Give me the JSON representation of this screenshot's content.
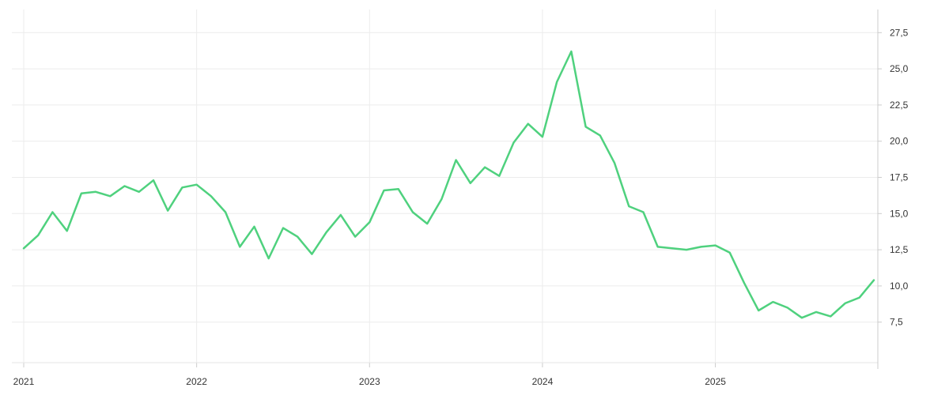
{
  "chart_data": {
    "type": "line",
    "title": "",
    "xlabel": "",
    "ylabel": "",
    "x_tick_labels": [
      "2021",
      "2022",
      "2023",
      "2024",
      "2025"
    ],
    "y_tick_labels": [
      "7,5",
      "10,0",
      "12,5",
      "15,0",
      "17,5",
      "20,0",
      "22,5",
      "25,0",
      "27,5"
    ],
    "y_ticks": [
      7.5,
      10.0,
      12.5,
      15.0,
      17.5,
      20.0,
      22.5,
      25.0,
      27.5
    ],
    "ylim": [
      4.7,
      29.1
    ],
    "xlim": [
      "2021-01",
      "2025-12"
    ],
    "grid": true,
    "y_axis_position": "right",
    "line_color": "#4fd17e",
    "grid_color": "#ececec",
    "series": [
      {
        "x": [
          "2021-01",
          "2021-02",
          "2021-03",
          "2021-04",
          "2021-05",
          "2021-06",
          "2021-07",
          "2021-08",
          "2021-09",
          "2021-10",
          "2021-11",
          "2021-12",
          "2022-01",
          "2022-02",
          "2022-03",
          "2022-04",
          "2022-05",
          "2022-06",
          "2022-07",
          "2022-08",
          "2022-09",
          "2022-10",
          "2022-11",
          "2022-12",
          "2023-01",
          "2023-02",
          "2023-03",
          "2023-04",
          "2023-05",
          "2023-06",
          "2023-07",
          "2023-08",
          "2023-09",
          "2023-10",
          "2023-11",
          "2023-12",
          "2024-01",
          "2024-02",
          "2024-03",
          "2024-04",
          "2024-05",
          "2024-06",
          "2024-07",
          "2024-08",
          "2024-09",
          "2024-10",
          "2024-11",
          "2024-12",
          "2025-01",
          "2025-02",
          "2025-03",
          "2025-04",
          "2025-05",
          "2025-06",
          "2025-07",
          "2025-08",
          "2025-09",
          "2025-10",
          "2025-11",
          "2025-12"
        ],
        "values": [
          12.6,
          13.5,
          15.1,
          13.8,
          16.4,
          16.5,
          16.2,
          16.9,
          16.5,
          17.3,
          15.2,
          16.8,
          17.0,
          16.2,
          15.1,
          12.7,
          14.1,
          11.9,
          14.0,
          13.4,
          12.2,
          13.7,
          14.9,
          13.4,
          14.4,
          16.6,
          16.7,
          15.1,
          14.3,
          16.0,
          18.7,
          17.1,
          18.2,
          17.6,
          19.9,
          21.2,
          20.3,
          24.1,
          26.2,
          21.0,
          20.4,
          18.5,
          15.5,
          15.1,
          12.7,
          12.6,
          12.5,
          12.7,
          12.8,
          12.3,
          10.2,
          8.3,
          8.9,
          8.5,
          7.8,
          8.2,
          7.9,
          8.8,
          9.2,
          10.4
        ]
      }
    ]
  }
}
